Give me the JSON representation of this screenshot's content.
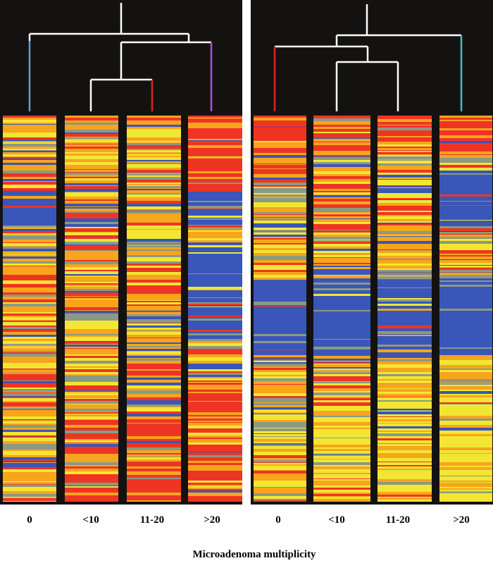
{
  "chart_data": {
    "type": "heatmap",
    "title": "",
    "xlabel": "Microadenoma multiplicity",
    "ylabel": "",
    "legend": "none",
    "color_scale": [
      "#3a56b8",
      "#8a9a84",
      "#f2e633",
      "#f7a51c",
      "#ee3524"
    ],
    "panels": [
      {
        "name": "left",
        "categories": [
          "0",
          "<10",
          "11-20",
          ">20"
        ],
        "dendrogram": {
          "branch_colors": [
            "#5a9fd6",
            "#e02020",
            "#b04de0",
            "#ffffff"
          ],
          "merge_order": [
            [
              "<10",
              "11-20"
            ],
            [
              "<10+11-20",
              ">20"
            ],
            [
              "0",
              "<10+11-20+>20"
            ]
          ]
        },
        "blue_dominant_bands": {
          "0": [
            [
              0.19,
              0.28
            ],
            [
              0.88,
              0.91
            ]
          ],
          "<10": [],
          "11-20": [],
          ">20": [
            [
              0.19,
              0.28
            ],
            [
              0.34,
              0.58
            ]
          ]
        },
        "red_dominant_bands": {
          "0": [],
          "<10": [
            [
              0.78,
              1.0
            ]
          ],
          "11-20": [
            [
              0.78,
              1.0
            ]
          ],
          ">20": [
            [
              0.0,
              0.19
            ],
            [
              0.7,
              1.0
            ]
          ]
        }
      },
      {
        "name": "right",
        "categories": [
          "0",
          "<10",
          "11-20",
          ">20"
        ],
        "dendrogram": {
          "branch_colors": [
            "#e02020",
            "#3ec0c0",
            "#ffffff"
          ],
          "merge_order": [
            [
              "<10",
              "11-20"
            ],
            [
              "0",
              "<10+11-20"
            ],
            [
              "0+<10+11-20",
              ">20"
            ]
          ]
        },
        "blue_dominant_bands": {
          "0": [
            [
              0.42,
              0.62
            ]
          ],
          "<10": [
            [
              0.42,
              0.62
            ]
          ],
          "11-20": [
            [
              0.42,
              0.62
            ]
          ],
          ">20": [
            [
              0.14,
              0.3
            ],
            [
              0.42,
              0.62
            ]
          ]
        },
        "red_dominant_bands": {
          "0": [
            [
              0.0,
              0.16
            ]
          ],
          "<10": [
            [
              0.0,
              0.1
            ]
          ],
          "11-20": [
            [
              0.0,
              0.1
            ]
          ],
          ">20": [
            [
              0.0,
              0.1
            ]
          ]
        }
      }
    ]
  }
}
